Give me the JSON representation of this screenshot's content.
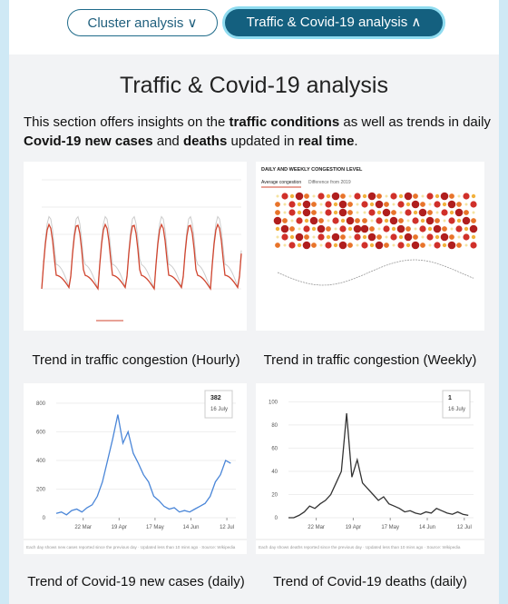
{
  "tabs": [
    {
      "label": "Cluster analysis",
      "active": false
    },
    {
      "label": "Traffic & Covid-19 analysis",
      "active": true
    }
  ],
  "section": {
    "title": "Traffic & Covid-19 analysis",
    "intro": [
      {
        "text": "This section offers insights on the ",
        "bold": false
      },
      {
        "text": "traffic conditions",
        "bold": true
      },
      {
        "text": " as well as trends in daily ",
        "bold": false
      },
      {
        "text": "Covid-19 new cases",
        "bold": true
      },
      {
        "text": " and ",
        "bold": false
      },
      {
        "text": "deaths",
        "bold": true
      },
      {
        "text": " updated in ",
        "bold": false
      },
      {
        "text": "real time",
        "bold": true
      },
      {
        "text": ".",
        "bold": false
      }
    ]
  },
  "traffic_weekly": {
    "heading": "DAILY AND WEEKLY CONGESTION LEVEL",
    "tabs": [
      "Average congestion",
      "Difference from 2019"
    ]
  },
  "captions": [
    "Trend in traffic congestion (Hourly)",
    "Trend in traffic congestion (Weekly)",
    "Trend of Covid-19 new cases (daily)",
    "Trend of Covid-19 deaths (daily)"
  ],
  "chart_data": [
    {
      "type": "line",
      "color": "#4a86d8",
      "x": [
        0,
        4,
        8,
        12,
        16,
        20,
        24,
        28,
        32,
        36,
        40,
        44,
        48,
        52,
        56,
        60,
        64,
        68,
        72,
        76,
        80,
        84,
        88,
        92,
        96,
        100,
        104,
        108,
        112,
        116,
        120,
        124,
        128,
        132,
        136
      ],
      "values": [
        30,
        40,
        20,
        50,
        60,
        40,
        70,
        90,
        150,
        250,
        400,
        550,
        720,
        520,
        600,
        450,
        380,
        300,
        250,
        150,
        120,
        80,
        60,
        70,
        40,
        50,
        40,
        60,
        80,
        100,
        150,
        250,
        300,
        400,
        380
      ],
      "xlim": [
        0,
        140
      ],
      "ylim": [
        0,
        850
      ],
      "yticks": [
        0,
        200,
        400,
        600,
        800
      ],
      "xticks": [
        {
          "value": 21,
          "label": "22 Mar"
        },
        {
          "value": 49,
          "label": "19 Apr"
        },
        {
          "value": 77,
          "label": "17 May"
        },
        {
          "value": 105,
          "label": "14 Jun"
        },
        {
          "value": 133,
          "label": "12 Jul"
        }
      ],
      "annotation": {
        "value": 382,
        "label": "16 July"
      },
      "footnote": "Each day shows new cases reported since the previous day · Updated less than 10 mins ago · Source: Wikipedia"
    },
    {
      "type": "line",
      "color": "#333333",
      "x": [
        0,
        4,
        8,
        12,
        16,
        20,
        24,
        28,
        32,
        36,
        40,
        44,
        48,
        52,
        56,
        60,
        64,
        68,
        72,
        76,
        80,
        84,
        88,
        92,
        96,
        100,
        104,
        108,
        112,
        116,
        120,
        124,
        128,
        132,
        136
      ],
      "values": [
        0,
        0,
        2,
        5,
        10,
        8,
        12,
        15,
        20,
        30,
        40,
        90,
        35,
        50,
        30,
        25,
        20,
        15,
        18,
        12,
        10,
        8,
        5,
        6,
        4,
        3,
        5,
        4,
        8,
        6,
        4,
        3,
        5,
        3,
        2
      ],
      "xlim": [
        0,
        140
      ],
      "ylim": [
        0,
        105
      ],
      "yticks": [
        0,
        20,
        40,
        60,
        80,
        100
      ],
      "xticks": [
        {
          "value": 21,
          "label": "22 Mar"
        },
        {
          "value": 49,
          "label": "19 Apr"
        },
        {
          "value": 77,
          "label": "17 May"
        },
        {
          "value": 105,
          "label": "14 Jun"
        },
        {
          "value": 133,
          "label": "12 Jul"
        }
      ],
      "annotation": {
        "value": 1,
        "label": "16 July"
      },
      "footnote": "Each day shows deaths reported since the previous day · Updated less than 10 mins ago · Source: Wikipedia"
    }
  ]
}
